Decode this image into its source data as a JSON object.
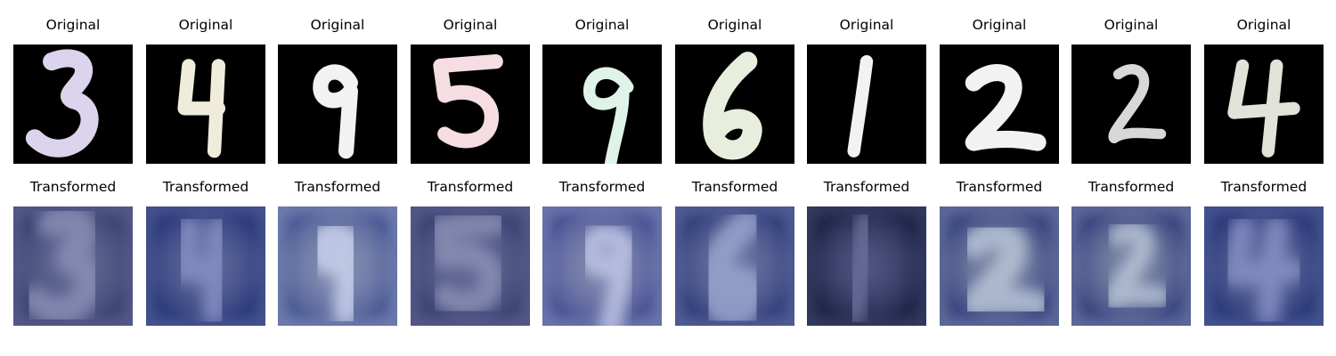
{
  "labels": {
    "original": "Original",
    "transformed": "Transformed"
  },
  "figure": {
    "row_titles": [
      "Original",
      "Transformed"
    ],
    "samples": [
      {
        "digit": "3",
        "stroke_color": "#dcd3ec",
        "transform_tone": "#8a8fb5",
        "transform_base": "#3d4475"
      },
      {
        "digit": "4",
        "stroke_color": "#f0ecdc",
        "transform_tone": "#8790c4",
        "transform_base": "#2b3a7a"
      },
      {
        "digit": "9",
        "stroke_color": "#f2f2f2",
        "transform_tone": "#c9d2ec",
        "transform_base": "#4a5a94"
      },
      {
        "digit": "5",
        "stroke_color": "#f5dde2",
        "transform_tone": "#8a8fb5",
        "transform_base": "#3d4475"
      },
      {
        "digit": "9",
        "stroke_color": "#dff3e8",
        "transform_tone": "#c0c6e6",
        "transform_base": "#4a5494"
      },
      {
        "digit": "6",
        "stroke_color": "#e8eedd",
        "transform_tone": "#9aa5cf",
        "transform_base": "#34407c"
      },
      {
        "digit": "1",
        "stroke_color": "#f2f2f2",
        "transform_tone": "#6a6f9a",
        "transform_base": "#1f2448"
      },
      {
        "digit": "2",
        "stroke_color": "#f2f2f2",
        "transform_tone": "#b7c4d6",
        "transform_base": "#3a4680"
      },
      {
        "digit": "2",
        "stroke_color": "#d8d8d8",
        "transform_tone": "#b7c4d6",
        "transform_base": "#3a4680"
      },
      {
        "digit": "4",
        "stroke_color": "#e2e2d8",
        "transform_tone": "#8790c4",
        "transform_base": "#2b3a7a"
      }
    ]
  }
}
